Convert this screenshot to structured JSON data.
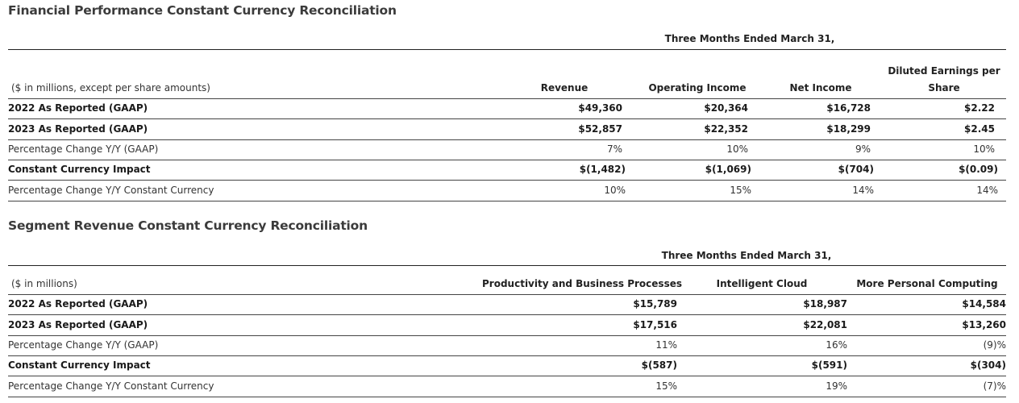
{
  "table1": {
    "title": "Financial Performance Constant Currency Reconciliation",
    "period_header": "Three Months Ended March 31,",
    "unit_label": "($ in millions, except per share amounts)",
    "columns": [
      "Revenue",
      "Operating Income",
      "Net Income",
      "Diluted Earnings per",
      "Share"
    ],
    "rows": [
      {
        "label": "2022 As Reported (GAAP)",
        "values": [
          "$49,360",
          "$20,364",
          "$16,728",
          "$2.22"
        ]
      },
      {
        "label": "2023 As Reported (GAAP)",
        "values": [
          "$52,857",
          "$22,352",
          "$18,299",
          "$2.45"
        ]
      },
      {
        "label": "Percentage Change Y/Y (GAAP)",
        "values": [
          "7%",
          "10%",
          "9%",
          "10%"
        ]
      },
      {
        "label": "Constant Currency Impact",
        "values": [
          "$(1,482)",
          "$(1,069)",
          "$(704)",
          "$(0.09)"
        ]
      },
      {
        "label": "Percentage Change Y/Y Constant Currency",
        "values": [
          "10%",
          "15%",
          "14%",
          "14%"
        ]
      }
    ]
  },
  "table2": {
    "title": "Segment Revenue Constant Currency Reconciliation",
    "period_header": "Three Months Ended March 31,",
    "unit_label": "($ in millions)",
    "columns": [
      "Productivity and Business Processes",
      "Intelligent Cloud",
      "More Personal Computing"
    ],
    "rows": [
      {
        "label": "2022 As Reported (GAAP)",
        "values": [
          "$15,789",
          "$18,987",
          "$14,584"
        ]
      },
      {
        "label": "2023 As Reported (GAAP)",
        "values": [
          "$17,516",
          "$22,081",
          "$13,260"
        ]
      },
      {
        "label": "Percentage Change Y/Y (GAAP)",
        "values": [
          "11%",
          "16%",
          "(9)%"
        ]
      },
      {
        "label": "Constant Currency Impact",
        "values": [
          "$(587)",
          "$(591)",
          "$(304)"
        ]
      },
      {
        "label": "Percentage Change Y/Y Constant Currency",
        "values": [
          "15%",
          "19%",
          "(7)%"
        ]
      }
    ]
  }
}
